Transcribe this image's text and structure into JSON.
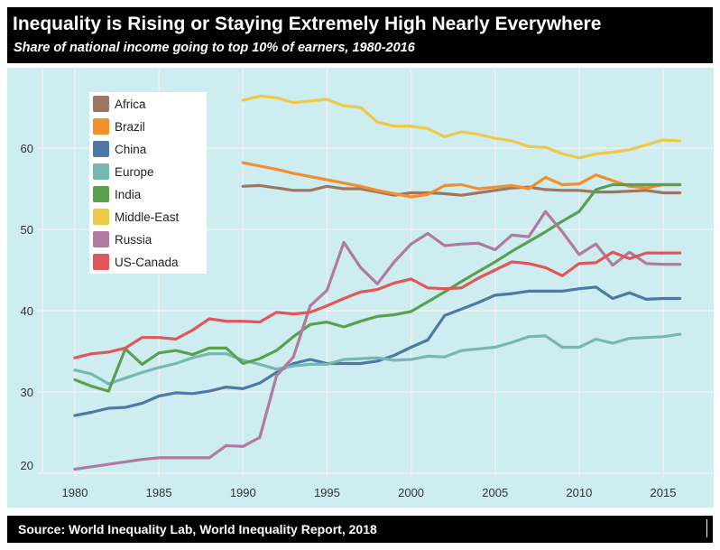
{
  "header": {
    "title": "Inequality is Rising or Staying Extremely High Nearly Everywhere",
    "subtitle": "Share of national income going to top 10% of earners, 1980-2016"
  },
  "footer": {
    "source": "Source: World Inequality Lab, World Inequality Report, 2018"
  },
  "chart_data": {
    "type": "line",
    "title": "Inequality is Rising or Staying Extremely High Nearly Everywhere",
    "subtitle": "Share of national income going to top 10% of earners, 1980-2016",
    "xlabel": "",
    "ylabel": "",
    "xlim": [
      1978,
      2018.5
    ],
    "ylim": [
      20,
      70
    ],
    "xticks": [
      1980,
      1985,
      1990,
      1995,
      2000,
      2005,
      2010,
      2015
    ],
    "yticks": [
      20,
      30,
      40,
      50,
      60
    ],
    "grid": true,
    "legend_placement": "top-left",
    "background": "#cdedf0",
    "series": [
      {
        "name": "Africa",
        "color": "#9c7660",
        "start": 1990,
        "values": [
          55.3,
          55.4,
          55.1,
          54.8,
          54.8,
          55.3,
          55.0,
          55.0,
          54.6,
          54.2,
          54.5,
          54.5,
          54.4,
          54.2,
          54.5,
          54.8,
          55.1,
          55.2,
          54.9,
          54.8,
          54.8,
          54.6,
          54.6,
          54.7,
          54.8,
          54.5,
          54.5
        ]
      },
      {
        "name": "Brazil",
        "color": "#f28e2b",
        "start": 1990,
        "values": [
          58.2,
          57.8,
          57.4,
          56.9,
          56.5,
          56.1,
          55.7,
          55.3,
          54.8,
          54.4,
          54.0,
          54.3,
          55.4,
          55.5,
          55.0,
          55.2,
          55.4,
          55.0,
          56.4,
          55.5,
          55.6,
          56.7,
          56.0,
          55.3,
          55.1,
          55.5,
          55.5
        ]
      },
      {
        "name": "China",
        "color": "#4e79a7",
        "start": 1980,
        "values": [
          27.1,
          27.5,
          28.0,
          28.1,
          28.6,
          29.5,
          29.9,
          29.8,
          30.1,
          30.6,
          30.4,
          31.1,
          32.4,
          33.5,
          34.0,
          33.5,
          33.5,
          33.5,
          33.8,
          34.5,
          35.5,
          36.4,
          39.4,
          40.2,
          41.0,
          41.9,
          42.1,
          42.4,
          42.4,
          42.4,
          42.7,
          42.9,
          41.5,
          42.2,
          41.4,
          41.5,
          41.5
        ]
      },
      {
        "name": "Europe",
        "color": "#76b7b2",
        "start": 1980,
        "values": [
          32.7,
          32.2,
          31.0,
          31.7,
          32.4,
          33.0,
          33.5,
          34.2,
          34.7,
          34.7,
          33.9,
          33.4,
          32.8,
          33.2,
          33.4,
          33.4,
          34.0,
          34.1,
          34.2,
          33.9,
          34.0,
          34.4,
          34.3,
          35.1,
          35.3,
          35.5,
          36.1,
          36.8,
          36.9,
          35.5,
          35.5,
          36.5,
          36.0,
          36.6,
          36.7,
          36.8,
          37.1
        ]
      },
      {
        "name": "India",
        "color": "#59a14f",
        "start": 1980,
        "values": [
          31.5,
          30.7,
          30.1,
          35.3,
          33.4,
          34.8,
          35.1,
          34.6,
          35.4,
          35.4,
          33.5,
          34.1,
          35.1,
          36.8,
          38.3,
          38.6,
          38.0,
          38.7,
          39.3,
          39.5,
          39.9,
          41.1,
          42.3,
          43.6,
          44.8,
          46.0,
          47.3,
          48.5,
          49.7,
          51.0,
          52.2,
          54.9,
          55.5,
          55.5,
          55.5,
          55.5,
          55.5
        ]
      },
      {
        "name": "Middle-East",
        "color": "#edc948",
        "start": 1990,
        "values": [
          65.9,
          66.4,
          66.2,
          65.6,
          65.8,
          66.0,
          65.2,
          65.0,
          63.2,
          62.7,
          62.7,
          62.4,
          61.4,
          62.0,
          61.7,
          61.2,
          60.9,
          60.2,
          60.1,
          59.3,
          58.8,
          59.3,
          59.5,
          59.8,
          60.4,
          61.0,
          60.9
        ]
      },
      {
        "name": "Russia",
        "color": "#b07aa1",
        "start": 1980,
        "values": [
          20.5,
          20.8,
          21.1,
          21.4,
          21.7,
          21.9,
          21.9,
          21.9,
          21.9,
          23.4,
          23.3,
          24.4,
          32.0,
          34.3,
          40.6,
          42.5,
          48.4,
          45.3,
          43.3,
          46.0,
          48.2,
          49.5,
          48.0,
          48.2,
          48.3,
          47.5,
          49.3,
          49.1,
          52.2,
          49.7,
          46.9,
          48.2,
          45.6,
          47.2,
          45.8,
          45.7,
          45.7
        ]
      },
      {
        "name": "US-Canada",
        "color": "#e15759",
        "start": 1980,
        "values": [
          34.2,
          34.7,
          34.9,
          35.4,
          36.7,
          36.7,
          36.5,
          37.6,
          39.0,
          38.7,
          38.7,
          38.6,
          39.8,
          39.6,
          39.8,
          40.6,
          41.5,
          42.3,
          42.6,
          43.4,
          43.9,
          42.8,
          42.7,
          42.8,
          44.0,
          45.0,
          46.0,
          45.8,
          45.3,
          44.3,
          45.8,
          45.9,
          47.2,
          46.4,
          47.1,
          47.1,
          47.1
        ]
      }
    ]
  }
}
